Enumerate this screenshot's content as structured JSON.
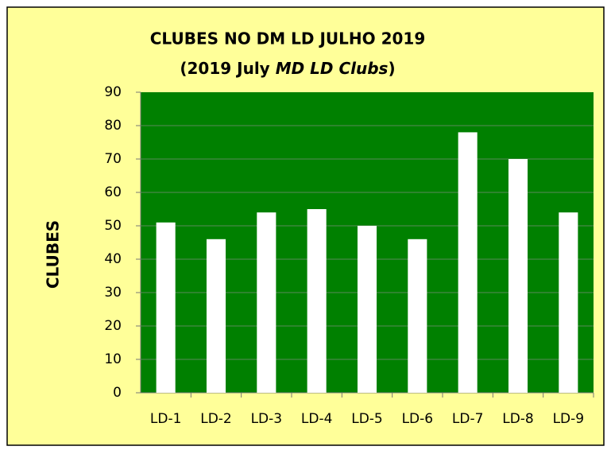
{
  "chart_data": {
    "type": "bar",
    "title": "CLUBES NO DM LD JULHO 2019",
    "subtitle": [
      "(2019  July ",
      "MD LD Clubs",
      ")"
    ],
    "y_label": "CLUBES",
    "categories": [
      "LD-1",
      "LD-2",
      "LD-3",
      "LD-4",
      "LD-5",
      "LD-6",
      "LD-7",
      "LD-8",
      "LD-9"
    ],
    "values": [
      51,
      46,
      54,
      55,
      50,
      46,
      78,
      70,
      54
    ],
    "color": "#ffffff",
    "ylim": [
      0,
      90
    ],
    "yticks": [
      0,
      10,
      20,
      30,
      40,
      50,
      60,
      70,
      80,
      90
    ],
    "grid": true
  }
}
